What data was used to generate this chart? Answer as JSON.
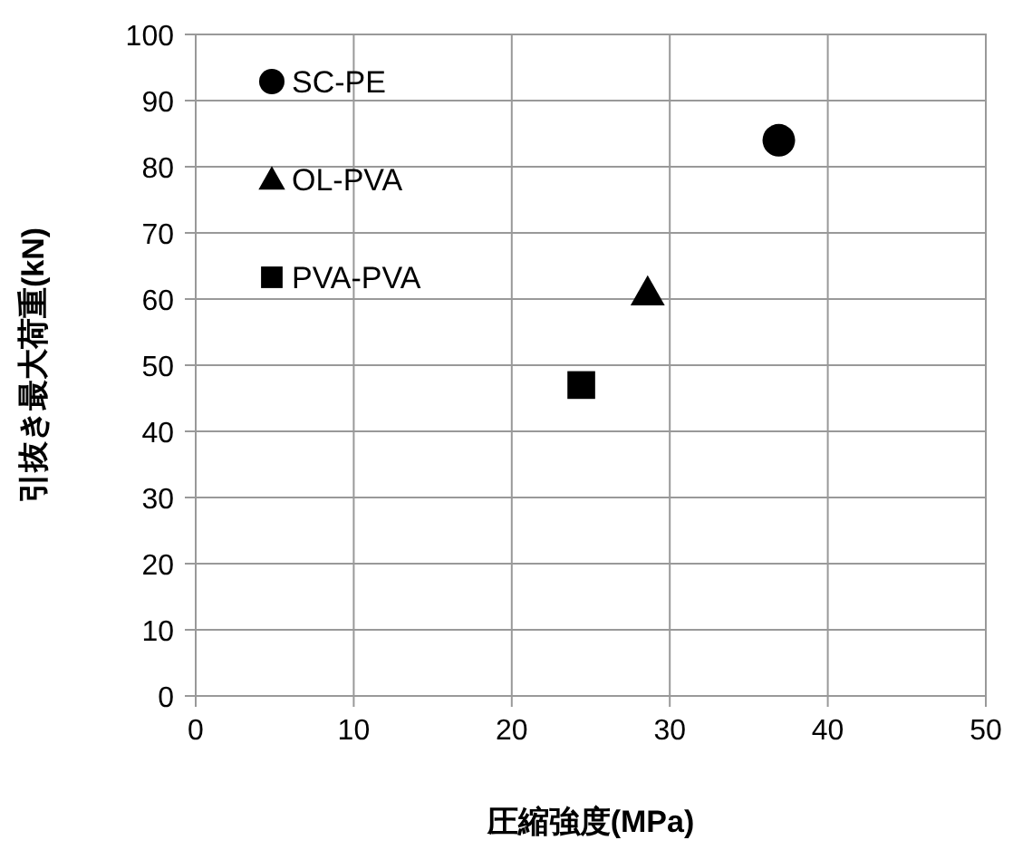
{
  "chart_data": {
    "type": "scatter",
    "xlabel": "圧縮強度(MPa)",
    "ylabel": "引抜き最大荷重(kN)",
    "xlim": [
      0,
      50
    ],
    "xticks": [
      0,
      10,
      20,
      30,
      40,
      50
    ],
    "ylim": [
      0,
      100
    ],
    "yticks": [
      0,
      10,
      20,
      30,
      40,
      50,
      60,
      70,
      80,
      90,
      100
    ],
    "grid": true,
    "legend": "top left",
    "series": [
      {
        "name": "SC-PE",
        "color": "#000000",
        "marker": "circle",
        "x": [
          36.9
        ],
        "values": [
          84
        ]
      },
      {
        "name": "OL-PVA",
        "color": "#000000",
        "marker": "triangle",
        "x": [
          28.6
        ],
        "values": [
          61
        ]
      },
      {
        "name": "PVA-PVA",
        "color": "#000000",
        "marker": "square",
        "x": [
          24.4
        ],
        "values": [
          47
        ]
      }
    ]
  }
}
